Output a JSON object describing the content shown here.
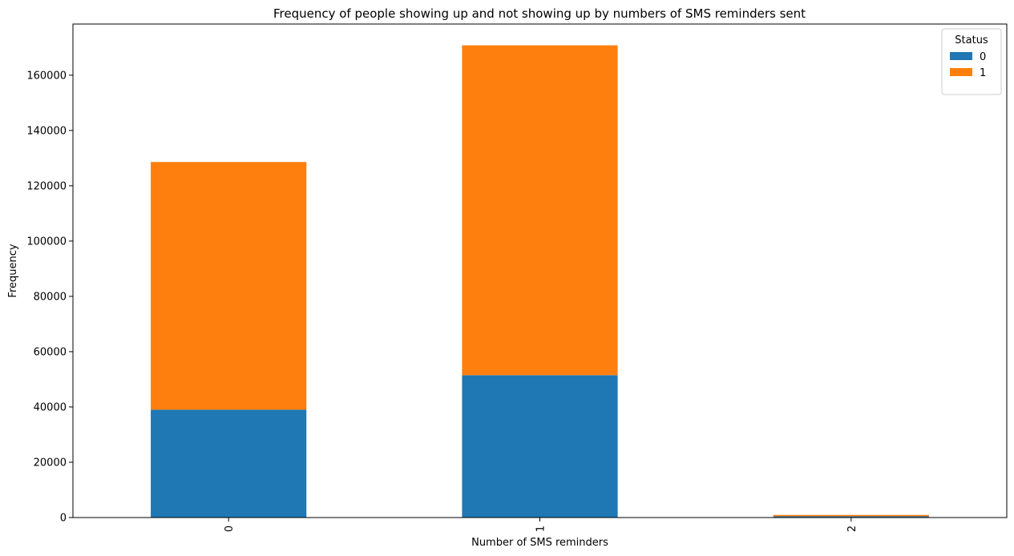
{
  "chart_data": {
    "type": "bar",
    "stacked": true,
    "title": "Frequency of people showing up and not showing up by numbers of SMS reminders sent",
    "xlabel": "Number of SMS reminders",
    "ylabel": "Frequency",
    "categories": [
      "0",
      "1",
      "2"
    ],
    "series": [
      {
        "name": "0",
        "color": "#1f77b4",
        "values": [
          39000,
          51500,
          450
        ]
      },
      {
        "name": "1",
        "color": "#ff7f0e",
        "values": [
          89600,
          119300,
          500
        ]
      }
    ],
    "ylim": [
      0,
      178500
    ],
    "yticks": [
      0,
      20000,
      40000,
      60000,
      80000,
      100000,
      120000,
      140000,
      160000
    ],
    "ytick_labels": [
      "0",
      "20000",
      "40000",
      "60000",
      "80000",
      "100000",
      "120000",
      "140000",
      "160000"
    ],
    "xtick_rotation": 90,
    "legend": {
      "title": "Status",
      "placement": "top-right"
    },
    "grid": false
  }
}
